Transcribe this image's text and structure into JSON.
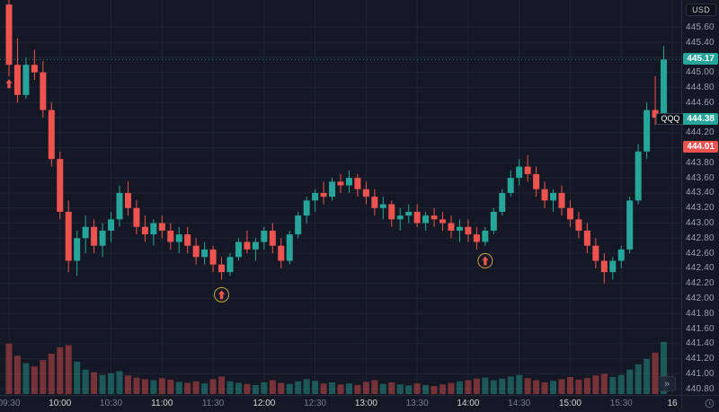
{
  "colors": {
    "background": "#141824",
    "grid": "#1e2431",
    "up": "#26a69a",
    "down": "#ef5350",
    "axis_text": "#99a0ad",
    "axis_text_bright": "#d2d6dd",
    "axis_border": "#262b38",
    "marker_ring": "#c9a63f",
    "marker_arrow": "#ef5350"
  },
  "price_axis": {
    "unit_label": "USD",
    "ticks": [
      "445.60",
      "445.40",
      "445.20",
      "445.00",
      "444.80",
      "444.60",
      "444.40",
      "444.20",
      "444.00",
      "443.80",
      "443.60",
      "443.40",
      "443.20",
      "443.00",
      "442.80",
      "442.60",
      "442.40",
      "442.20",
      "442.00",
      "441.80",
      "441.60",
      "441.40",
      "441.20",
      "441.00",
      "440.80"
    ],
    "badges": [
      {
        "name": "last-price-label",
        "text": "445.17",
        "price": 445.17,
        "bg": "#26a69a",
        "fg": "#ffffff",
        "interactable": false
      },
      {
        "name": "symbol-price-label",
        "symbol": "QQQ",
        "text": "444.38",
        "price": 444.38,
        "bg": "#26a69a",
        "fg": "#ffffff",
        "interactable": false
      },
      {
        "name": "price-alert-label",
        "text": "444.01",
        "price": 444.01,
        "bg": "#ef5350",
        "fg": "#ffffff",
        "interactable": true
      }
    ]
  },
  "time_axis": {
    "ticks": [
      {
        "label": "09:30",
        "index": 0,
        "major": false
      },
      {
        "label": "10:00",
        "index": 6,
        "major": true
      },
      {
        "label": "10:30",
        "index": 12,
        "major": false
      },
      {
        "label": "11:00",
        "index": 18,
        "major": true
      },
      {
        "label": "11:30",
        "index": 24,
        "major": false
      },
      {
        "label": "12:00",
        "index": 30,
        "major": true
      },
      {
        "label": "12:30",
        "index": 36,
        "major": false
      },
      {
        "label": "13:00",
        "index": 42,
        "major": true
      },
      {
        "label": "13:30",
        "index": 48,
        "major": false
      },
      {
        "label": "14:00",
        "index": 54,
        "major": true
      },
      {
        "label": "14:30",
        "index": 60,
        "major": false
      },
      {
        "label": "15:00",
        "index": 66,
        "major": true
      },
      {
        "label": "15:30",
        "index": 72,
        "major": false
      },
      {
        "label": "16",
        "index": 78,
        "major": true
      }
    ]
  },
  "controls": {
    "goto_realtime_label": "»"
  },
  "chart_data": {
    "type": "candlestick",
    "symbol": "QQQ",
    "currency": "USD",
    "interval": "5m",
    "title": "",
    "ylim": [
      440.72,
      445.96
    ],
    "last_price": 445.17,
    "grid": true,
    "volume_max_millions": 9.8,
    "columns": [
      "time",
      "open",
      "high",
      "low",
      "close",
      "volume_millions"
    ],
    "candles": [
      [
        "09:30",
        445.9,
        446.05,
        444.95,
        445.1,
        9.5
      ],
      [
        "09:35",
        445.1,
        445.45,
        444.6,
        444.7,
        7.2
      ],
      [
        "09:40",
        444.7,
        445.2,
        444.65,
        445.1,
        5.8
      ],
      [
        "09:45",
        445.1,
        445.3,
        444.9,
        445.0,
        5.2
      ],
      [
        "09:50",
        445.0,
        445.15,
        444.4,
        444.5,
        6.4
      ],
      [
        "09:55",
        444.5,
        444.6,
        443.75,
        443.85,
        7.6
      ],
      [
        "10:00",
        443.85,
        443.95,
        443.05,
        443.15,
        8.8
      ],
      [
        "10:05",
        443.15,
        443.3,
        442.35,
        442.5,
        9.2
      ],
      [
        "10:10",
        442.5,
        442.9,
        442.3,
        442.8,
        6.1
      ],
      [
        "10:15",
        442.8,
        443.1,
        442.6,
        442.95,
        4.6
      ],
      [
        "10:20",
        442.95,
        443.05,
        442.6,
        442.7,
        4.1
      ],
      [
        "10:25",
        442.7,
        443.0,
        442.55,
        442.9,
        3.6
      ],
      [
        "10:30",
        442.9,
        443.15,
        442.75,
        443.05,
        3.9
      ],
      [
        "10:35",
        443.05,
        443.5,
        442.95,
        443.4,
        4.3
      ],
      [
        "10:40",
        443.4,
        443.55,
        443.1,
        443.2,
        3.5
      ],
      [
        "10:45",
        443.2,
        443.3,
        442.85,
        442.95,
        3.1
      ],
      [
        "10:50",
        442.95,
        443.1,
        442.75,
        442.85,
        2.8
      ],
      [
        "10:55",
        442.85,
        443.05,
        442.7,
        443.0,
        2.6
      ],
      [
        "11:00",
        443.0,
        443.1,
        442.8,
        442.9,
        3.0
      ],
      [
        "11:05",
        442.9,
        443.0,
        442.65,
        442.75,
        2.7
      ],
      [
        "11:10",
        442.75,
        442.95,
        442.6,
        442.85,
        2.3
      ],
      [
        "11:15",
        442.85,
        442.95,
        442.6,
        442.7,
        2.1
      ],
      [
        "11:20",
        442.7,
        442.8,
        442.45,
        442.55,
        2.4
      ],
      [
        "11:25",
        442.55,
        442.75,
        442.45,
        442.65,
        2.0
      ],
      [
        "11:30",
        442.65,
        442.7,
        442.35,
        442.45,
        2.8
      ],
      [
        "11:35",
        442.45,
        442.55,
        442.25,
        442.35,
        3.3
      ],
      [
        "11:40",
        442.35,
        442.6,
        442.3,
        442.55,
        2.4
      ],
      [
        "11:45",
        442.55,
        442.8,
        442.5,
        442.75,
        2.1
      ],
      [
        "11:50",
        442.75,
        442.9,
        442.6,
        442.65,
        1.9
      ],
      [
        "11:55",
        442.65,
        442.8,
        442.5,
        442.75,
        1.7
      ],
      [
        "12:00",
        442.75,
        442.95,
        442.65,
        442.9,
        2.2
      ],
      [
        "12:05",
        442.9,
        443.0,
        442.6,
        442.7,
        2.6
      ],
      [
        "12:10",
        442.7,
        442.8,
        442.4,
        442.5,
        2.1
      ],
      [
        "12:15",
        442.5,
        442.9,
        442.45,
        442.85,
        1.9
      ],
      [
        "12:20",
        442.85,
        443.15,
        442.8,
        443.1,
        2.4
      ],
      [
        "12:25",
        443.1,
        443.35,
        443.0,
        443.3,
        2.8
      ],
      [
        "12:30",
        443.3,
        443.45,
        443.15,
        443.4,
        2.5
      ],
      [
        "12:35",
        443.4,
        443.55,
        443.25,
        443.35,
        2.0
      ],
      [
        "12:40",
        443.35,
        443.6,
        443.3,
        443.55,
        2.2
      ],
      [
        "12:45",
        443.55,
        443.65,
        443.4,
        443.5,
        1.8
      ],
      [
        "12:50",
        443.5,
        443.7,
        443.4,
        443.6,
        2.0
      ],
      [
        "12:55",
        443.6,
        443.65,
        443.35,
        443.45,
        1.7
      ],
      [
        "13:00",
        443.45,
        443.55,
        443.25,
        443.35,
        2.3
      ],
      [
        "13:05",
        443.35,
        443.45,
        443.1,
        443.2,
        2.6
      ],
      [
        "13:10",
        443.2,
        443.35,
        443.05,
        443.25,
        1.9
      ],
      [
        "13:15",
        443.25,
        443.3,
        442.95,
        443.05,
        2.2
      ],
      [
        "13:20",
        443.05,
        443.2,
        442.9,
        443.1,
        1.8
      ],
      [
        "13:25",
        443.1,
        443.25,
        443.0,
        443.15,
        1.6
      ],
      [
        "13:30",
        443.15,
        443.25,
        442.95,
        443.0,
        2.0
      ],
      [
        "13:35",
        443.0,
        443.15,
        442.9,
        443.1,
        1.7
      ],
      [
        "13:40",
        443.1,
        443.2,
        442.95,
        443.05,
        1.5
      ],
      [
        "13:45",
        443.05,
        443.15,
        442.9,
        443.0,
        1.8
      ],
      [
        "13:50",
        443.0,
        443.1,
        442.8,
        442.9,
        2.1
      ],
      [
        "13:55",
        442.9,
        443.05,
        442.75,
        442.95,
        2.4
      ],
      [
        "14:00",
        442.95,
        443.05,
        442.75,
        442.85,
        2.6
      ],
      [
        "14:05",
        442.85,
        442.95,
        442.65,
        442.75,
        2.9
      ],
      [
        "14:10",
        442.75,
        442.95,
        442.7,
        442.9,
        3.1
      ],
      [
        "14:15",
        442.9,
        443.2,
        442.85,
        443.15,
        2.6
      ],
      [
        "14:20",
        443.15,
        443.45,
        443.1,
        443.4,
        2.9
      ],
      [
        "14:25",
        443.4,
        443.7,
        443.35,
        443.6,
        3.3
      ],
      [
        "14:30",
        443.6,
        443.85,
        443.5,
        443.75,
        3.6
      ],
      [
        "14:35",
        443.75,
        443.9,
        443.55,
        443.65,
        3.0
      ],
      [
        "14:40",
        443.65,
        443.75,
        443.35,
        443.45,
        2.6
      ],
      [
        "14:45",
        443.45,
        443.55,
        443.2,
        443.3,
        2.2
      ],
      [
        "14:50",
        443.3,
        443.45,
        443.15,
        443.4,
        2.5
      ],
      [
        "14:55",
        443.4,
        443.5,
        443.1,
        443.2,
        2.8
      ],
      [
        "15:00",
        443.2,
        443.3,
        442.95,
        443.05,
        3.2
      ],
      [
        "15:05",
        443.05,
        443.15,
        442.8,
        442.9,
        2.7
      ],
      [
        "15:10",
        442.9,
        443.0,
        442.6,
        442.7,
        3.0
      ],
      [
        "15:15",
        442.7,
        442.8,
        442.4,
        442.5,
        3.5
      ],
      [
        "15:20",
        442.5,
        442.6,
        442.2,
        442.35,
        3.8
      ],
      [
        "15:25",
        442.35,
        442.55,
        442.25,
        442.5,
        3.2
      ],
      [
        "15:30",
        442.5,
        442.7,
        442.4,
        442.65,
        3.6
      ],
      [
        "15:35",
        442.65,
        443.35,
        442.6,
        443.3,
        4.6
      ],
      [
        "15:40",
        443.3,
        444.05,
        443.25,
        443.95,
        5.6
      ],
      [
        "15:45",
        443.95,
        444.6,
        443.85,
        444.5,
        6.6
      ],
      [
        "15:50",
        444.5,
        444.95,
        444.3,
        444.4,
        7.8
      ],
      [
        "15:55",
        444.4,
        445.35,
        444.35,
        445.17,
        9.8
      ]
    ],
    "markers": [
      {
        "candle_index": 0,
        "price": 444.85,
        "icon": "arrow-up",
        "circled": false
      },
      {
        "candle_index": 25,
        "price": 442.05,
        "icon": "arrow-up",
        "circled": true
      },
      {
        "candle_index": 56,
        "price": 442.5,
        "icon": "arrow-up",
        "circled": true
      }
    ]
  }
}
